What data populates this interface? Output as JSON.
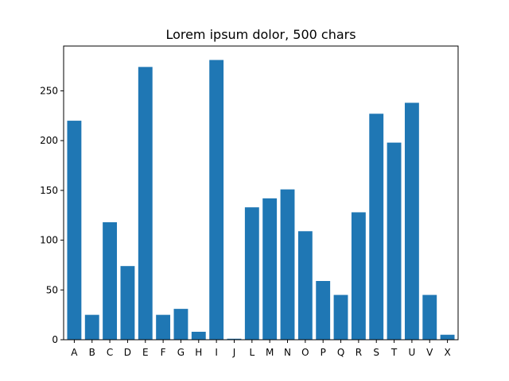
{
  "chart_data": {
    "type": "bar",
    "title": "Lorem ipsum dolor, 500 chars",
    "xlabel": "",
    "ylabel": "",
    "categories": [
      "A",
      "B",
      "C",
      "D",
      "E",
      "F",
      "G",
      "H",
      "I",
      "J",
      "L",
      "M",
      "N",
      "O",
      "P",
      "Q",
      "R",
      "S",
      "T",
      "U",
      "V",
      "X"
    ],
    "values": [
      220,
      25,
      118,
      74,
      274,
      25,
      31,
      8,
      281,
      1,
      133,
      142,
      151,
      109,
      59,
      45,
      128,
      227,
      198,
      238,
      45,
      5
    ],
    "ylim": [
      0,
      295
    ],
    "yticks": [
      0,
      50,
      100,
      150,
      200,
      250
    ],
    "grid": false,
    "legend": "none",
    "bar_color": "#1f77b4"
  }
}
